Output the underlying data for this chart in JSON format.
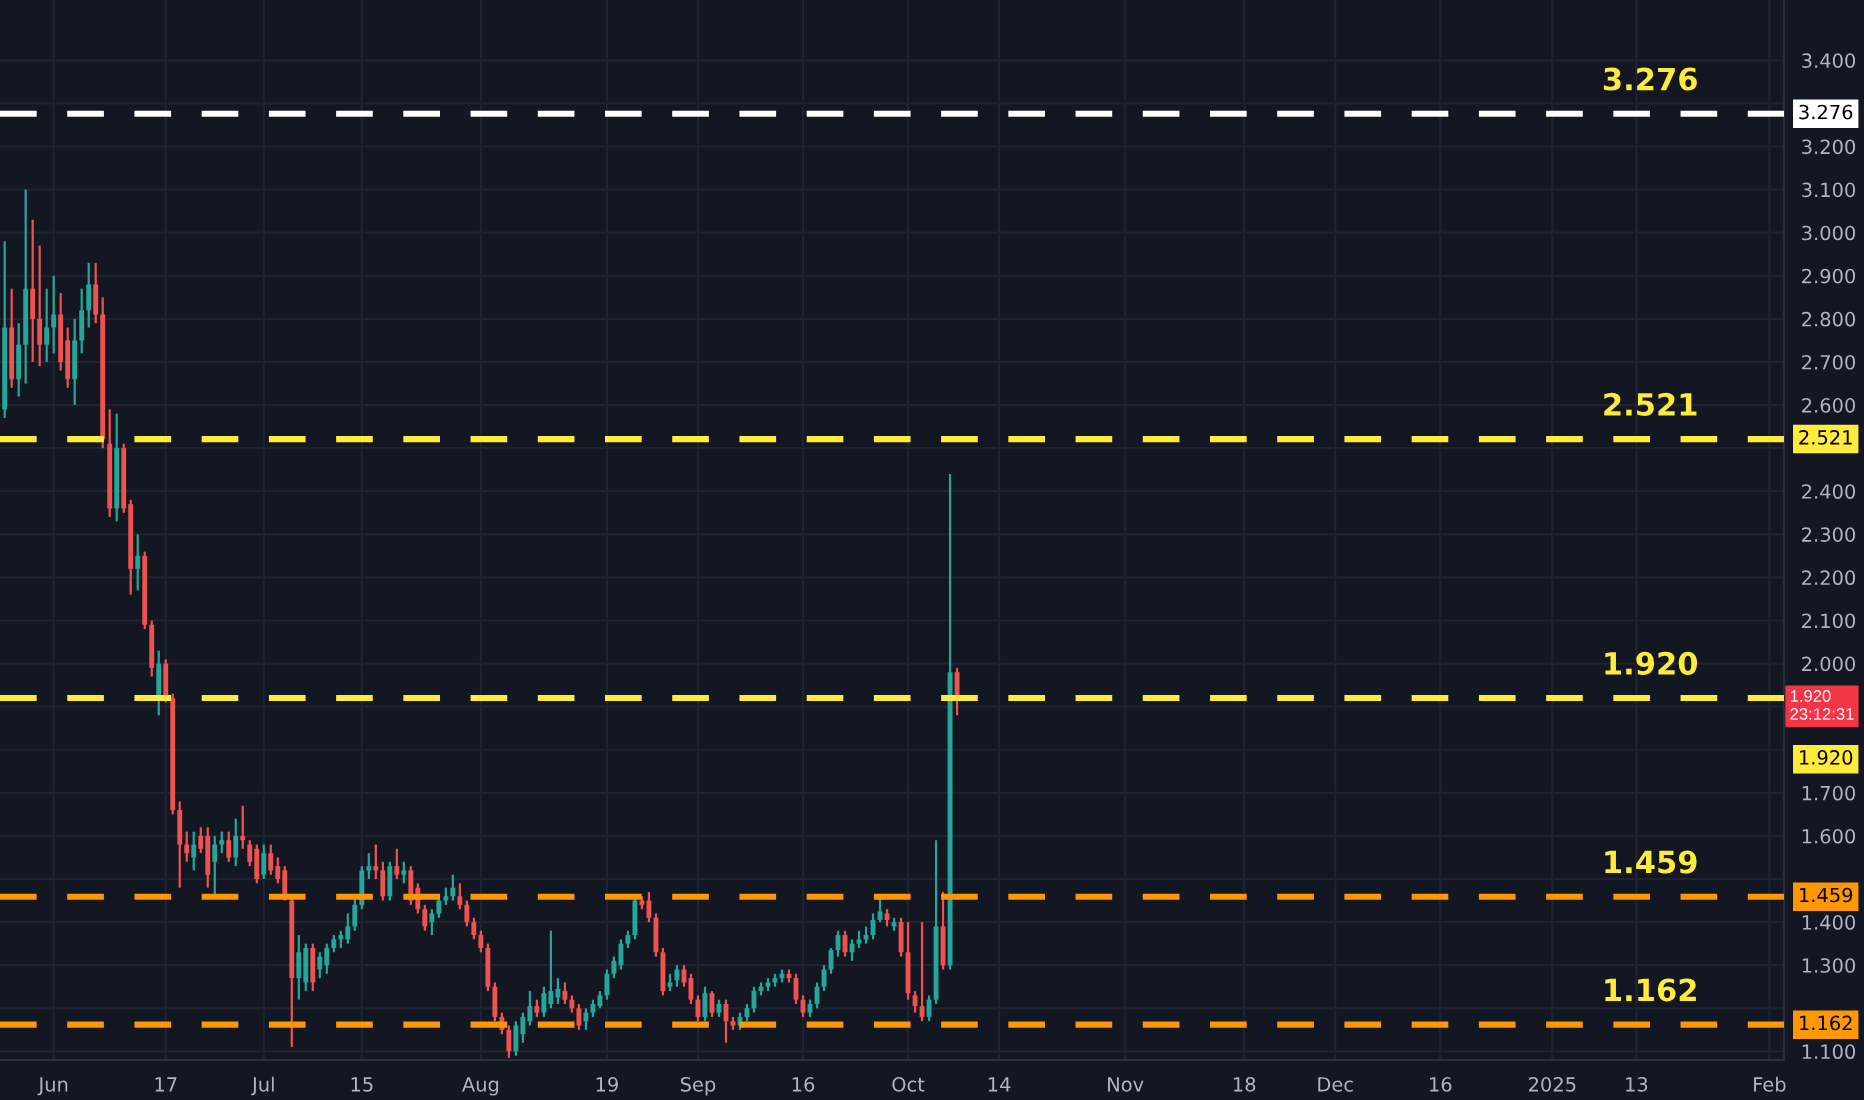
{
  "chart_data": {
    "type": "candlestick",
    "x": [
      "2024-05-25",
      "2024-05-26",
      "2024-05-27",
      "2024-05-28",
      "2024-05-29",
      "2024-05-30",
      "2024-05-31",
      "2024-06-01",
      "2024-06-02",
      "2024-06-03",
      "2024-06-04",
      "2024-06-05",
      "2024-06-06",
      "2024-06-07",
      "2024-06-08",
      "2024-06-09",
      "2024-06-10",
      "2024-06-11",
      "2024-06-12",
      "2024-06-13",
      "2024-06-14",
      "2024-06-15",
      "2024-06-16",
      "2024-06-17",
      "2024-06-18",
      "2024-06-19",
      "2024-06-20",
      "2024-06-21",
      "2024-06-22",
      "2024-06-23",
      "2024-06-24",
      "2024-06-25",
      "2024-06-26",
      "2024-06-27",
      "2024-06-28",
      "2024-06-29",
      "2024-06-30",
      "2024-07-01",
      "2024-07-02",
      "2024-07-03",
      "2024-07-04",
      "2024-07-05",
      "2024-07-06",
      "2024-07-07",
      "2024-07-08",
      "2024-07-09",
      "2024-07-10",
      "2024-07-11",
      "2024-07-12",
      "2024-07-13",
      "2024-07-14",
      "2024-07-15",
      "2024-07-16",
      "2024-07-17",
      "2024-07-18",
      "2024-07-19",
      "2024-07-20",
      "2024-07-21",
      "2024-07-22",
      "2024-07-23",
      "2024-07-24",
      "2024-07-25",
      "2024-07-26",
      "2024-07-27",
      "2024-07-28",
      "2024-07-29",
      "2024-07-30",
      "2024-07-31",
      "2024-08-01",
      "2024-08-02",
      "2024-08-03",
      "2024-08-04",
      "2024-08-05",
      "2024-08-06",
      "2024-08-07",
      "2024-08-08",
      "2024-08-09",
      "2024-08-10",
      "2024-08-11",
      "2024-08-12",
      "2024-08-13",
      "2024-08-14",
      "2024-08-15",
      "2024-08-16",
      "2024-08-17",
      "2024-08-18",
      "2024-08-19",
      "2024-08-20",
      "2024-08-21",
      "2024-08-22",
      "2024-08-23",
      "2024-08-24",
      "2024-08-25",
      "2024-08-26",
      "2024-08-27",
      "2024-08-28",
      "2024-08-29",
      "2024-08-30",
      "2024-08-31",
      "2024-09-01",
      "2024-09-02",
      "2024-09-03",
      "2024-09-04",
      "2024-09-05",
      "2024-09-06",
      "2024-09-07",
      "2024-09-08",
      "2024-09-09",
      "2024-09-10",
      "2024-09-11",
      "2024-09-12",
      "2024-09-13",
      "2024-09-14",
      "2024-09-15",
      "2024-09-16",
      "2024-09-17",
      "2024-09-18",
      "2024-09-19",
      "2024-09-20",
      "2024-09-21",
      "2024-09-22",
      "2024-09-23",
      "2024-09-24",
      "2024-09-25",
      "2024-09-26",
      "2024-09-27",
      "2024-09-28",
      "2024-09-29",
      "2024-09-30",
      "2024-10-01",
      "2024-10-02",
      "2024-10-03",
      "2024-10-04",
      "2024-10-05",
      "2024-10-06",
      "2024-10-07",
      "2024-10-08"
    ],
    "ohlc": [
      [
        2.59,
        2.98,
        2.57,
        2.78
      ],
      [
        2.78,
        2.87,
        2.64,
        2.66
      ],
      [
        2.66,
        2.79,
        2.62,
        2.74
      ],
      [
        2.74,
        3.1,
        2.65,
        2.87
      ],
      [
        2.87,
        3.03,
        2.7,
        2.8
      ],
      [
        2.8,
        2.97,
        2.69,
        2.74
      ],
      [
        2.74,
        2.87,
        2.7,
        2.78
      ],
      [
        2.78,
        2.9,
        2.72,
        2.81
      ],
      [
        2.81,
        2.86,
        2.68,
        2.7
      ],
      [
        2.75,
        2.78,
        2.64,
        2.66
      ],
      [
        2.66,
        2.8,
        2.6,
        2.75
      ],
      [
        2.75,
        2.87,
        2.72,
        2.82
      ],
      [
        2.82,
        2.93,
        2.78,
        2.88
      ],
      [
        2.88,
        2.93,
        2.79,
        2.81
      ],
      [
        2.81,
        2.85,
        2.5,
        2.52
      ],
      [
        2.51,
        2.59,
        2.34,
        2.36
      ],
      [
        2.36,
        2.58,
        2.33,
        2.5
      ],
      [
        2.5,
        2.51,
        2.35,
        2.36
      ],
      [
        2.37,
        2.38,
        2.16,
        2.22
      ],
      [
        2.22,
        2.3,
        2.17,
        2.25
      ],
      [
        2.25,
        2.26,
        2.08,
        2.09
      ],
      [
        2.09,
        2.1,
        1.97,
        1.99
      ],
      [
        1.92,
        2.03,
        1.88,
        2.0
      ],
      [
        2.0,
        2.01,
        1.91,
        1.92
      ],
      [
        1.92,
        1.93,
        1.65,
        1.66
      ],
      [
        1.66,
        1.68,
        1.48,
        1.58
      ],
      [
        1.58,
        1.61,
        1.54,
        1.56
      ],
      [
        1.55,
        1.61,
        1.52,
        1.58
      ],
      [
        1.6,
        1.62,
        1.56,
        1.57
      ],
      [
        1.6,
        1.62,
        1.48,
        1.51
      ],
      [
        1.54,
        1.6,
        1.46,
        1.58
      ],
      [
        1.58,
        1.61,
        1.56,
        1.59
      ],
      [
        1.59,
        1.61,
        1.54,
        1.55
      ],
      [
        1.55,
        1.64,
        1.53,
        1.6
      ],
      [
        1.6,
        1.67,
        1.57,
        1.59
      ],
      [
        1.58,
        1.59,
        1.53,
        1.54
      ],
      [
        1.57,
        1.58,
        1.49,
        1.5
      ],
      [
        1.51,
        1.58,
        1.5,
        1.56
      ],
      [
        1.56,
        1.58,
        1.51,
        1.52
      ],
      [
        1.53,
        1.55,
        1.49,
        1.5
      ],
      [
        1.52,
        1.53,
        1.45,
        1.46
      ],
      [
        1.45,
        1.46,
        1.11,
        1.27
      ],
      [
        1.27,
        1.37,
        1.22,
        1.33
      ],
      [
        1.26,
        1.35,
        1.24,
        1.34
      ],
      [
        1.34,
        1.35,
        1.24,
        1.26
      ],
      [
        1.29,
        1.33,
        1.27,
        1.32
      ],
      [
        1.3,
        1.35,
        1.28,
        1.34
      ],
      [
        1.34,
        1.37,
        1.33,
        1.36
      ],
      [
        1.36,
        1.38,
        1.34,
        1.37
      ],
      [
        1.36,
        1.42,
        1.35,
        1.39
      ],
      [
        1.39,
        1.46,
        1.38,
        1.44
      ],
      [
        1.44,
        1.53,
        1.43,
        1.52
      ],
      [
        1.52,
        1.56,
        1.5,
        1.53
      ],
      [
        1.53,
        1.58,
        1.5,
        1.52
      ],
      [
        1.52,
        1.54,
        1.45,
        1.46
      ],
      [
        1.46,
        1.54,
        1.45,
        1.53
      ],
      [
        1.53,
        1.57,
        1.5,
        1.51
      ],
      [
        1.51,
        1.54,
        1.49,
        1.52
      ],
      [
        1.52,
        1.53,
        1.44,
        1.45
      ],
      [
        1.48,
        1.49,
        1.42,
        1.43
      ],
      [
        1.43,
        1.44,
        1.38,
        1.39
      ],
      [
        1.4,
        1.43,
        1.37,
        1.42
      ],
      [
        1.42,
        1.46,
        1.41,
        1.45
      ],
      [
        1.45,
        1.48,
        1.44,
        1.46
      ],
      [
        1.46,
        1.51,
        1.45,
        1.48
      ],
      [
        1.46,
        1.49,
        1.43,
        1.44
      ],
      [
        1.44,
        1.45,
        1.39,
        1.4
      ],
      [
        1.4,
        1.41,
        1.36,
        1.37
      ],
      [
        1.37,
        1.38,
        1.33,
        1.34
      ],
      [
        1.34,
        1.35,
        1.24,
        1.25
      ],
      [
        1.25,
        1.26,
        1.17,
        1.18
      ],
      [
        1.18,
        1.19,
        1.14,
        1.15
      ],
      [
        1.15,
        1.16,
        1.085,
        1.1
      ],
      [
        1.1,
        1.17,
        1.09,
        1.16
      ],
      [
        1.14,
        1.19,
        1.12,
        1.18
      ],
      [
        1.17,
        1.24,
        1.16,
        1.205
      ],
      [
        1.205,
        1.22,
        1.18,
        1.19
      ],
      [
        1.19,
        1.25,
        1.18,
        1.235
      ],
      [
        1.21,
        1.38,
        1.2,
        1.24
      ],
      [
        1.225,
        1.27,
        1.21,
        1.245
      ],
      [
        1.24,
        1.26,
        1.21,
        1.22
      ],
      [
        1.22,
        1.23,
        1.19,
        1.2
      ],
      [
        1.2,
        1.21,
        1.15,
        1.16
      ],
      [
        1.17,
        1.2,
        1.15,
        1.19
      ],
      [
        1.19,
        1.22,
        1.18,
        1.21
      ],
      [
        1.205,
        1.24,
        1.2,
        1.23
      ],
      [
        1.23,
        1.29,
        1.22,
        1.28
      ],
      [
        1.28,
        1.32,
        1.27,
        1.31
      ],
      [
        1.3,
        1.36,
        1.29,
        1.35
      ],
      [
        1.35,
        1.38,
        1.34,
        1.37
      ],
      [
        1.37,
        1.46,
        1.36,
        1.45
      ],
      [
        1.45,
        1.46,
        1.43,
        1.44
      ],
      [
        1.45,
        1.47,
        1.4,
        1.41
      ],
      [
        1.41,
        1.42,
        1.32,
        1.33
      ],
      [
        1.33,
        1.34,
        1.23,
        1.24
      ],
      [
        1.25,
        1.28,
        1.24,
        1.26
      ],
      [
        1.265,
        1.3,
        1.25,
        1.29
      ],
      [
        1.29,
        1.3,
        1.25,
        1.26
      ],
      [
        1.27,
        1.28,
        1.21,
        1.22
      ],
      [
        1.22,
        1.23,
        1.17,
        1.18
      ],
      [
        1.18,
        1.25,
        1.17,
        1.235
      ],
      [
        1.235,
        1.24,
        1.18,
        1.19
      ],
      [
        1.19,
        1.22,
        1.18,
        1.21
      ],
      [
        1.21,
        1.22,
        1.12,
        1.17
      ],
      [
        1.17,
        1.18,
        1.15,
        1.16
      ],
      [
        1.16,
        1.19,
        1.15,
        1.18
      ],
      [
        1.18,
        1.21,
        1.17,
        1.2
      ],
      [
        1.2,
        1.25,
        1.19,
        1.24
      ],
      [
        1.24,
        1.26,
        1.23,
        1.25
      ],
      [
        1.25,
        1.27,
        1.24,
        1.26
      ],
      [
        1.26,
        1.28,
        1.25,
        1.27
      ],
      [
        1.27,
        1.29,
        1.26,
        1.28
      ],
      [
        1.28,
        1.29,
        1.26,
        1.27
      ],
      [
        1.27,
        1.28,
        1.21,
        1.22
      ],
      [
        1.22,
        1.23,
        1.18,
        1.19
      ],
      [
        1.19,
        1.22,
        1.18,
        1.21
      ],
      [
        1.21,
        1.26,
        1.2,
        1.25
      ],
      [
        1.25,
        1.3,
        1.24,
        1.29
      ],
      [
        1.29,
        1.34,
        1.28,
        1.335
      ],
      [
        1.335,
        1.38,
        1.32,
        1.37
      ],
      [
        1.37,
        1.38,
        1.32,
        1.33
      ],
      [
        1.33,
        1.36,
        1.31,
        1.35
      ],
      [
        1.35,
        1.38,
        1.34,
        1.36
      ],
      [
        1.36,
        1.39,
        1.35,
        1.37
      ],
      [
        1.37,
        1.42,
        1.36,
        1.405
      ],
      [
        1.405,
        1.46,
        1.4,
        1.425
      ],
      [
        1.42,
        1.43,
        1.39,
        1.405
      ],
      [
        1.39,
        1.41,
        1.38,
        1.4
      ],
      [
        1.4,
        1.41,
        1.32,
        1.33
      ],
      [
        1.33,
        1.4,
        1.22,
        1.235
      ],
      [
        1.23,
        1.24,
        1.19,
        1.205
      ],
      [
        1.205,
        1.4,
        1.17,
        1.18
      ],
      [
        1.18,
        1.23,
        1.17,
        1.22
      ],
      [
        1.22,
        1.59,
        1.21,
        1.39
      ],
      [
        1.39,
        1.47,
        1.29,
        1.3
      ],
      [
        1.3,
        2.44,
        1.29,
        1.98
      ],
      [
        1.98,
        1.99,
        1.88,
        1.92
      ]
    ],
    "xlim": [
      "2024-05-24T08:00",
      "2025-02-03T02:00"
    ],
    "xticks": [
      {
        "value": "2024-06-01",
        "label": "Jun"
      },
      {
        "value": "2024-06-17",
        "label": "17"
      },
      {
        "value": "2024-07-01",
        "label": "Jul"
      },
      {
        "value": "2024-07-15",
        "label": "15"
      },
      {
        "value": "2024-08-01",
        "label": "Aug"
      },
      {
        "value": "2024-08-19",
        "label": "19"
      },
      {
        "value": "2024-09-01",
        "label": "Sep"
      },
      {
        "value": "2024-09-16",
        "label": "16"
      },
      {
        "value": "2024-10-01",
        "label": "Oct"
      },
      {
        "value": "2024-10-14",
        "label": "14"
      },
      {
        "value": "2024-11-01",
        "label": "Nov"
      },
      {
        "value": "2024-11-18",
        "label": "18"
      },
      {
        "value": "2024-12-01",
        "label": "Dec"
      },
      {
        "value": "2024-12-16",
        "label": "16"
      },
      {
        "value": "2025-01-01",
        "label": "2025"
      },
      {
        "value": "2025-01-13",
        "label": "13"
      },
      {
        "value": "2025-02-01",
        "label": "Feb"
      }
    ],
    "ylim": [
      1.08,
      3.54
    ],
    "yticks": [
      {
        "value": 1.1,
        "label": "1.100"
      },
      {
        "value": 1.2,
        "label": null
      },
      {
        "value": 1.3,
        "label": "1.300"
      },
      {
        "value": 1.4,
        "label": "1.400"
      },
      {
        "value": 1.5,
        "label": null
      },
      {
        "value": 1.6,
        "label": "1.600"
      },
      {
        "value": 1.7,
        "label": "1.700"
      },
      {
        "value": 1.8,
        "label": null
      },
      {
        "value": 1.9,
        "label": null
      },
      {
        "value": 2.0,
        "label": "2.000"
      },
      {
        "value": 2.1,
        "label": "2.100"
      },
      {
        "value": 2.2,
        "label": "2.200"
      },
      {
        "value": 2.3,
        "label": "2.300"
      },
      {
        "value": 2.4,
        "label": "2.400"
      },
      {
        "value": 2.5,
        "label": null
      },
      {
        "value": 2.6,
        "label": "2.600"
      },
      {
        "value": 2.7,
        "label": "2.700"
      },
      {
        "value": 2.8,
        "label": "2.800"
      },
      {
        "value": 2.9,
        "label": "2.900"
      },
      {
        "value": 3.0,
        "label": "3.000"
      },
      {
        "value": 3.1,
        "label": "3.100"
      },
      {
        "value": 3.2,
        "label": "3.200"
      },
      {
        "value": 3.3,
        "label": null
      },
      {
        "value": 3.4,
        "label": "3.400"
      }
    ],
    "ref_lines": [
      {
        "axis": "y",
        "value": 3.276,
        "label": "3.276",
        "color": "#ffffff",
        "line_style": "dashed"
      },
      {
        "axis": "y",
        "value": 2.521,
        "label": "2.521",
        "color": "#ffeb3b",
        "line_style": "dashed"
      },
      {
        "axis": "y",
        "value": 1.92,
        "label": "1.920",
        "color": "#ffeb3b",
        "line_style": "dashed"
      },
      {
        "axis": "y",
        "value": 1.459,
        "label": "1.459",
        "color": "#ff9800",
        "line_style": "dashed"
      },
      {
        "axis": "y",
        "value": 1.162,
        "label": "1.162",
        "color": "#ff9800",
        "line_style": "dashed"
      }
    ],
    "annotations": [
      "1.920",
      "23:12:31"
    ],
    "grid": true
  }
}
